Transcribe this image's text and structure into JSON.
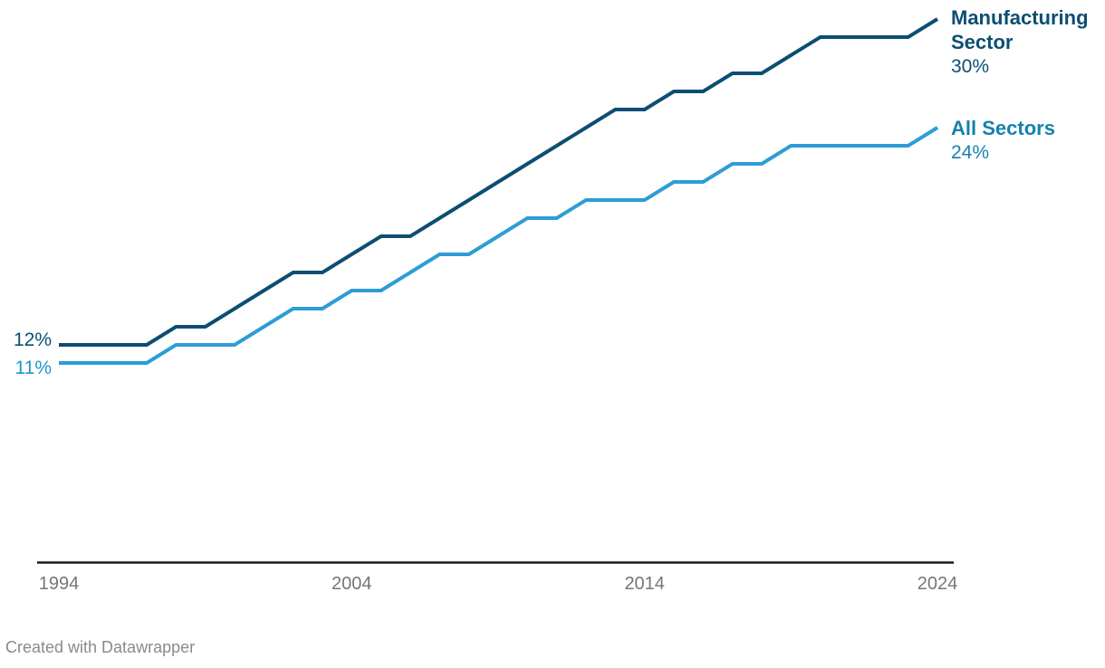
{
  "chart_data": {
    "type": "line",
    "title": "",
    "xlabel": "",
    "ylabel": "",
    "y_unit": "%",
    "grid": false,
    "legend_position": "direct-labels-right",
    "x_range": [
      1994,
      2024
    ],
    "ylim": [
      0,
      30
    ],
    "axis_color": "#1a1a1a",
    "x": [
      1994,
      1995,
      1996,
      1997,
      1998,
      1999,
      2000,
      2001,
      2002,
      2003,
      2004,
      2005,
      2006,
      2007,
      2008,
      2009,
      2010,
      2011,
      2012,
      2013,
      2014,
      2015,
      2016,
      2017,
      2018,
      2019,
      2020,
      2021,
      2022,
      2023,
      2024
    ],
    "x_ticks": [
      1994,
      2004,
      2014,
      2024
    ],
    "series": [
      {
        "id": "manufacturing-sector",
        "name": "Manufacturing Sector",
        "line_color": "#0c4e72",
        "start_label_color": "#0c4e72",
        "end_label_color": "#0c4e72",
        "start_label": "12%",
        "end_label": "30%",
        "values": [
          12,
          12,
          12,
          12,
          13,
          13,
          14,
          15,
          16,
          16,
          17,
          18,
          18,
          19,
          20,
          21,
          22,
          23,
          24,
          25,
          25,
          26,
          26,
          27,
          27,
          28,
          29,
          29,
          29,
          29,
          30
        ]
      },
      {
        "id": "all-sectors",
        "name": "All Sectors",
        "line_color": "#2d9dd5",
        "start_label_color": "#2196c9",
        "end_label_color": "#1681ac",
        "start_label": "11%",
        "end_label": "24%",
        "values": [
          11,
          11,
          11,
          11,
          12,
          12,
          12,
          13,
          14,
          14,
          15,
          15,
          16,
          17,
          17,
          18,
          19,
          19,
          20,
          20,
          20,
          21,
          21,
          22,
          22,
          23,
          23,
          23,
          23,
          23,
          24
        ]
      }
    ]
  },
  "footer": {
    "text": "Created with Datawrapper"
  }
}
